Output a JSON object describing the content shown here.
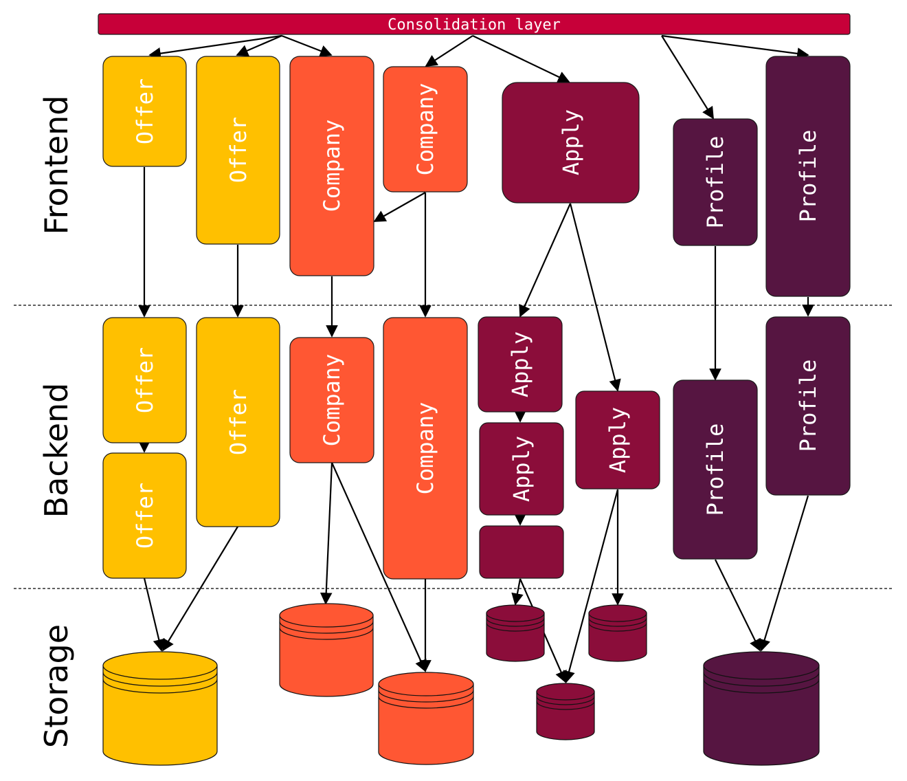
{
  "colors": {
    "offer": "#ffc000",
    "company": "#ff5733",
    "apply": "#8b0d3a",
    "profile": "#561541",
    "consolidation": "#c70039"
  },
  "consolidation": {
    "label": "Consolidation layer"
  },
  "layers": {
    "frontend": "Frontend",
    "backend": "Backend",
    "storage": "Storage"
  },
  "boxes": {
    "f_offer1": "Offer",
    "f_offer2": "Offer",
    "f_company1": "Company",
    "f_company2": "Company",
    "f_apply": "Apply",
    "f_profile1": "Profile",
    "f_profile2": "Profile",
    "b_offer1": "Offer",
    "b_offer2": "Offer",
    "b_offer3": "Offer",
    "b_company1": "Company",
    "b_company2": "Company",
    "b_apply1": "Apply",
    "b_apply2": "Apply",
    "b_apply3": "",
    "b_apply4": "Apply",
    "b_profile1": "Profile",
    "b_profile2": "Profile"
  }
}
